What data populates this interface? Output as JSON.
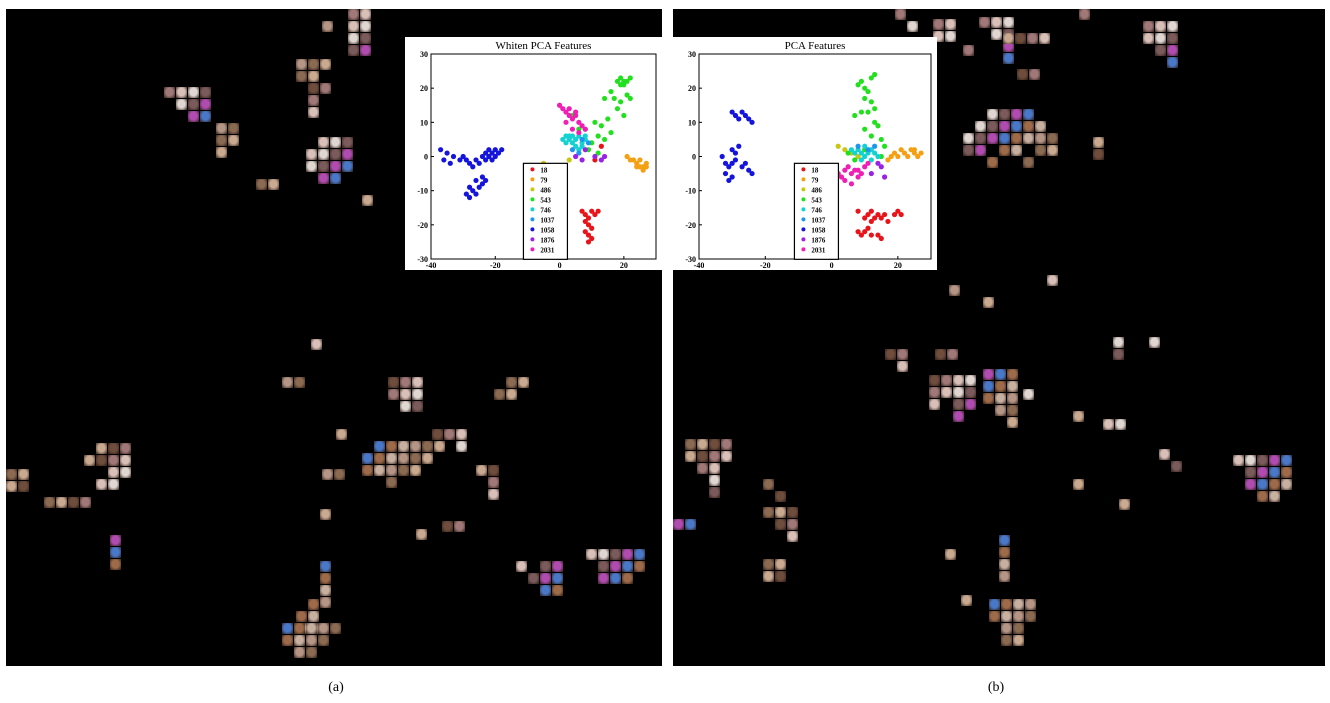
{
  "captions": [
    "(a)",
    "(b)"
  ],
  "colors": {
    "18": "#e8141a",
    "79": "#f5a012",
    "486": "#c8c810",
    "543": "#22e01e",
    "746": "#14d2d2",
    "1037": "#1e96f0",
    "1058": "#1414dc",
    "1876": "#9a22e6",
    "2031": "#f01eb4",
    "tile_tones": [
      "#b59585",
      "#8b6a52",
      "#c9a98f",
      "#6e4d3c",
      "#a07878",
      "#d8c0b8",
      "#e0d6d2",
      "#7a5a5a",
      "#b04cb0",
      "#4a78c8",
      "#9e6b4a",
      "#c8b0a0"
    ]
  },
  "chart_data": [
    {
      "type": "scatter",
      "title": "Whiten PCA Features",
      "xlabel": "",
      "ylabel": "",
      "xlim": [
        -40,
        30
      ],
      "ylim": [
        -30,
        30
      ],
      "xticks": [
        "-40",
        "-20",
        "0",
        "20"
      ],
      "yticks": [
        "30",
        "20",
        "10",
        "0",
        "-10",
        "-20",
        "-30"
      ],
      "legend_placement": "bottom-center",
      "series": [
        {
          "name": "18",
          "points": [
            [
              7,
              -16
            ],
            [
              8,
              -17
            ],
            [
              9,
              -18
            ],
            [
              10,
              -16
            ],
            [
              11,
              -17
            ],
            [
              9,
              -20
            ],
            [
              10,
              -21
            ],
            [
              8,
              -22
            ],
            [
              9,
              -23
            ],
            [
              10,
              -24
            ],
            [
              9,
              -25
            ],
            [
              12,
              -16
            ],
            [
              8,
              -19
            ],
            [
              13,
              3
            ],
            [
              11,
              -1
            ]
          ]
        },
        {
          "name": "79",
          "points": [
            [
              21,
              0
            ],
            [
              22,
              -1
            ],
            [
              23,
              -1
            ],
            [
              24,
              -2
            ],
            [
              25,
              -3
            ],
            [
              26,
              -3
            ],
            [
              27,
              -2
            ],
            [
              25,
              -1
            ],
            [
              24,
              -3
            ],
            [
              26,
              -4
            ],
            [
              27,
              -3
            ]
          ]
        },
        {
          "name": "486",
          "points": [
            [
              -5,
              -2
            ],
            [
              0,
              -4
            ],
            [
              3,
              -1
            ]
          ]
        },
        {
          "name": "543",
          "points": [
            [
              18,
              22
            ],
            [
              19,
              23
            ],
            [
              20,
              21
            ],
            [
              21,
              22
            ],
            [
              22,
              23
            ],
            [
              19,
              21
            ],
            [
              20,
              22
            ],
            [
              17,
              17
            ],
            [
              19,
              16
            ],
            [
              18,
              14
            ],
            [
              20,
              12
            ],
            [
              14,
              17
            ],
            [
              16,
              19
            ],
            [
              15,
              11
            ],
            [
              21,
              18
            ],
            [
              22,
              17
            ],
            [
              12,
              6
            ],
            [
              10,
              4
            ],
            [
              14,
              5
            ],
            [
              16,
              7
            ],
            [
              13,
              9
            ],
            [
              11,
              10
            ],
            [
              8,
              8
            ],
            [
              9,
              2
            ],
            [
              12,
              1
            ],
            [
              6,
              8
            ],
            [
              4,
              12
            ]
          ]
        },
        {
          "name": "746",
          "points": [
            [
              1,
              5
            ],
            [
              2,
              6
            ],
            [
              3,
              5
            ],
            [
              4,
              4
            ],
            [
              5,
              5
            ],
            [
              6,
              6
            ],
            [
              7,
              4
            ],
            [
              8,
              5
            ],
            [
              2,
              4
            ],
            [
              3,
              6
            ],
            [
              5,
              3
            ],
            [
              6,
              2
            ],
            [
              7,
              3
            ],
            [
              8,
              6
            ],
            [
              4,
              6
            ]
          ]
        },
        {
          "name": "1037",
          "points": [
            [
              4,
              2
            ],
            [
              6,
              1
            ],
            [
              7,
              5
            ],
            [
              9,
              4
            ]
          ]
        },
        {
          "name": "1058",
          "points": [
            [
              -37,
              2
            ],
            [
              -35,
              1
            ],
            [
              -33,
              0
            ],
            [
              -31,
              -1
            ],
            [
              -30,
              0
            ],
            [
              -29,
              -1
            ],
            [
              -28,
              -2
            ],
            [
              -27,
              -3
            ],
            [
              -26,
              -1
            ],
            [
              -25,
              -2
            ],
            [
              -24,
              0
            ],
            [
              -23,
              1
            ],
            [
              -22,
              2
            ],
            [
              -21,
              1
            ],
            [
              -20,
              0
            ],
            [
              -19,
              1
            ],
            [
              -18,
              2
            ],
            [
              -21,
              -1
            ],
            [
              -20,
              2
            ],
            [
              -22,
              0
            ],
            [
              -23,
              -1
            ],
            [
              -28,
              -9
            ],
            [
              -27,
              -10
            ],
            [
              -26,
              -11
            ],
            [
              -25,
              -9
            ],
            [
              -24,
              -8
            ],
            [
              -23,
              -7
            ],
            [
              -24,
              -6
            ],
            [
              -29,
              -11
            ],
            [
              -28,
              -12
            ],
            [
              -26,
              -7
            ],
            [
              -34,
              -2
            ],
            [
              -36,
              -1
            ]
          ]
        },
        {
          "name": "1876",
          "points": [
            [
              11,
              0
            ],
            [
              13,
              -1
            ],
            [
              14,
              0
            ],
            [
              5,
              0
            ],
            [
              7,
              -1
            ],
            [
              8,
              2
            ]
          ]
        },
        {
          "name": "2031",
          "points": [
            [
              0,
              15
            ],
            [
              1,
              14
            ],
            [
              2,
              13
            ],
            [
              3,
              12
            ],
            [
              4,
              11
            ],
            [
              5,
              12
            ],
            [
              6,
              10
            ],
            [
              7,
              9
            ],
            [
              8,
              8
            ],
            [
              3,
              14
            ],
            [
              5,
              13
            ],
            [
              2,
              10
            ],
            [
              4,
              8
            ],
            [
              6,
              7
            ]
          ]
        }
      ]
    },
    {
      "type": "scatter",
      "title": "PCA Features",
      "xlabel": "",
      "ylabel": "",
      "xlim": [
        -40,
        30
      ],
      "ylim": [
        -30,
        30
      ],
      "xticks": [
        "-40",
        "-20",
        "0",
        "20"
      ],
      "yticks": [
        "30",
        "20",
        "10",
        "0",
        "-10",
        "-20",
        "-30"
      ],
      "legend_placement": "bottom-center",
      "series": [
        {
          "name": "18",
          "points": [
            [
              10,
              -18
            ],
            [
              11,
              -17
            ],
            [
              12,
              -19
            ],
            [
              13,
              -18
            ],
            [
              14,
              -17
            ],
            [
              15,
              -18
            ],
            [
              16,
              -17
            ],
            [
              17,
              -19
            ],
            [
              8,
              -22
            ],
            [
              9,
              -23
            ],
            [
              10,
              -22
            ],
            [
              11,
              -21
            ],
            [
              12,
              -23
            ],
            [
              14,
              -23
            ],
            [
              15,
              -24
            ],
            [
              20,
              -16
            ],
            [
              21,
              -17
            ],
            [
              19,
              -17
            ],
            [
              8,
              -16
            ],
            [
              12,
              -16
            ]
          ]
        },
        {
          "name": "79",
          "points": [
            [
              17,
              -1
            ],
            [
              18,
              0
            ],
            [
              19,
              1
            ],
            [
              20,
              0
            ],
            [
              21,
              2
            ],
            [
              22,
              1
            ],
            [
              23,
              0
            ],
            [
              24,
              2
            ],
            [
              25,
              1
            ],
            [
              26,
              0
            ],
            [
              27,
              1
            ],
            [
              25,
              2
            ]
          ]
        },
        {
          "name": "486",
          "points": [
            [
              2,
              3
            ],
            [
              4,
              2
            ],
            [
              6,
              1
            ],
            [
              8,
              0
            ]
          ]
        },
        {
          "name": "543",
          "points": [
            [
              8,
              21
            ],
            [
              9,
              22
            ],
            [
              10,
              20
            ],
            [
              11,
              19
            ],
            [
              12,
              23
            ],
            [
              13,
              24
            ],
            [
              10,
              17
            ],
            [
              12,
              16
            ],
            [
              13,
              14
            ],
            [
              11,
              13
            ],
            [
              9,
              13
            ],
            [
              7,
              12
            ],
            [
              13,
              10
            ],
            [
              14,
              9
            ],
            [
              10,
              8
            ],
            [
              12,
              6
            ],
            [
              15,
              5
            ],
            [
              16,
              3
            ],
            [
              10,
              2
            ],
            [
              5,
              1
            ],
            [
              7,
              -1
            ],
            [
              15,
              0
            ]
          ]
        },
        {
          "name": "746",
          "points": [
            [
              6,
              2
            ],
            [
              7,
              1
            ],
            [
              8,
              2
            ],
            [
              9,
              1
            ],
            [
              10,
              0
            ],
            [
              11,
              1
            ],
            [
              12,
              2
            ],
            [
              13,
              1
            ],
            [
              14,
              0
            ],
            [
              9,
              -1
            ],
            [
              10,
              3
            ],
            [
              12,
              -1
            ]
          ]
        },
        {
          "name": "1037",
          "points": [
            [
              8,
              3
            ],
            [
              11,
              2
            ],
            [
              13,
              3
            ]
          ]
        },
        {
          "name": "1058",
          "points": [
            [
              -30,
              13
            ],
            [
              -29,
              12
            ],
            [
              -28,
              11
            ],
            [
              -27,
              13
            ],
            [
              -26,
              12
            ],
            [
              -25,
              11
            ],
            [
              -24,
              10
            ],
            [
              -30,
              2
            ],
            [
              -29,
              1
            ],
            [
              -28,
              3
            ],
            [
              -29,
              -1
            ],
            [
              -30,
              -2
            ],
            [
              -31,
              -3
            ],
            [
              -32,
              -5
            ],
            [
              -31,
              -7
            ],
            [
              -30,
              -6
            ],
            [
              -27,
              -3
            ],
            [
              -26,
              -2
            ],
            [
              -25,
              -4
            ],
            [
              -24,
              -5
            ],
            [
              -32,
              -2
            ],
            [
              -33,
              0
            ]
          ]
        },
        {
          "name": "1876",
          "points": [
            [
              14,
              -2
            ],
            [
              15,
              -3
            ],
            [
              12,
              -5
            ],
            [
              16,
              -6
            ]
          ]
        },
        {
          "name": "2031",
          "points": [
            [
              2,
              -5
            ],
            [
              3,
              -6
            ],
            [
              4,
              -4
            ],
            [
              5,
              -3
            ],
            [
              6,
              -5
            ],
            [
              7,
              -4
            ],
            [
              8,
              -6
            ],
            [
              9,
              -5
            ],
            [
              10,
              -3
            ],
            [
              11,
              -2
            ],
            [
              4,
              -7
            ],
            [
              6,
              -8
            ],
            [
              8,
              -4
            ]
          ]
        }
      ]
    }
  ]
}
